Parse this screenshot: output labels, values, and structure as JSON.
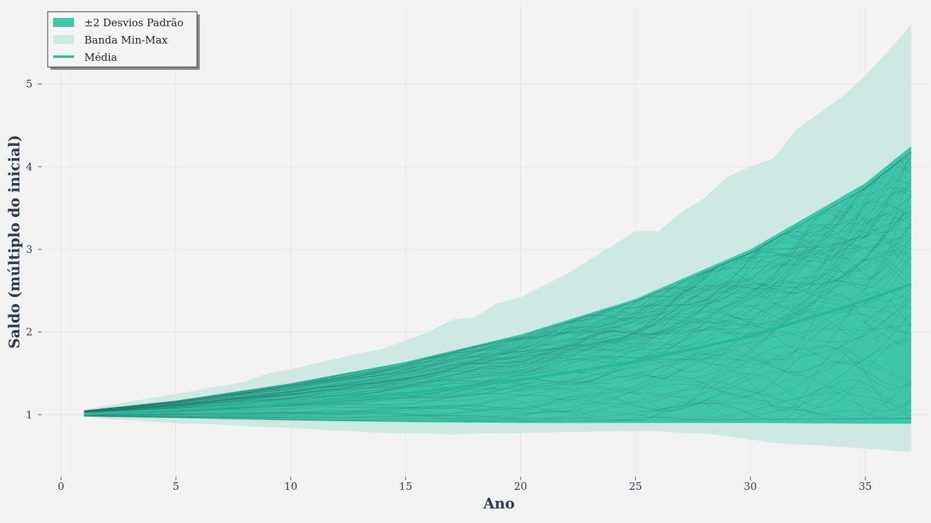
{
  "chart_data": {
    "type": "area",
    "title": "",
    "xlabel": "Ano",
    "ylabel": "Saldo (múltiplo do inicial)",
    "xlim": [
      -1,
      37.8
    ],
    "ylim": [
      0.25,
      5.95
    ],
    "x_ticks": [
      0,
      5,
      10,
      15,
      20,
      25,
      30,
      35
    ],
    "y_ticks": [
      1,
      2,
      3,
      4,
      5
    ],
    "grid": true,
    "legend_position": "top-left",
    "legend": [
      "±2 Desvios Padrão",
      "Banda Min-Max",
      "Média"
    ],
    "colors": {
      "std_band": "#3fc6a8",
      "minmax_band": "#cde9e2",
      "mean_line": "#2ab89a",
      "simulation_paths": "#1f6f60",
      "grid": "#e2e2e2",
      "text": "#2b3a4a"
    },
    "series": [
      {
        "name": "Banda Min-Max",
        "x": [
          1,
          3,
          5,
          7,
          8,
          9,
          10,
          12,
          14,
          16,
          17,
          18,
          19,
          20,
          22,
          24,
          25,
          26,
          27,
          28,
          29,
          30,
          31,
          32,
          33,
          34,
          35,
          36,
          37
        ],
        "upper": [
          1.06,
          1.16,
          1.25,
          1.35,
          1.4,
          1.5,
          1.55,
          1.68,
          1.8,
          2.0,
          2.15,
          2.18,
          2.35,
          2.42,
          2.7,
          3.05,
          3.22,
          3.22,
          3.45,
          3.62,
          3.88,
          4.0,
          4.1,
          4.45,
          4.65,
          4.85,
          5.1,
          5.4,
          5.72
        ],
        "lower": [
          0.98,
          0.93,
          0.9,
          0.88,
          0.86,
          0.85,
          0.84,
          0.81,
          0.78,
          0.77,
          0.76,
          0.77,
          0.77,
          0.78,
          0.79,
          0.8,
          0.8,
          0.8,
          0.78,
          0.77,
          0.74,
          0.7,
          0.66,
          0.64,
          0.63,
          0.61,
          0.59,
          0.57,
          0.55
        ]
      },
      {
        "name": "±2 Desvios Padrão",
        "x": [
          1,
          5,
          10,
          15,
          20,
          25,
          30,
          35,
          37
        ],
        "upper": [
          1.05,
          1.17,
          1.38,
          1.64,
          1.97,
          2.4,
          3.0,
          3.8,
          4.25
        ],
        "lower": [
          0.98,
          0.96,
          0.93,
          0.91,
          0.9,
          0.9,
          0.9,
          0.89,
          0.89
        ]
      },
      {
        "name": "Média",
        "x": [
          1,
          5,
          10,
          15,
          20,
          25,
          30,
          35,
          37
        ],
        "values": [
          1.01,
          1.06,
          1.14,
          1.26,
          1.42,
          1.64,
          1.95,
          2.38,
          2.58
        ]
      }
    ]
  }
}
